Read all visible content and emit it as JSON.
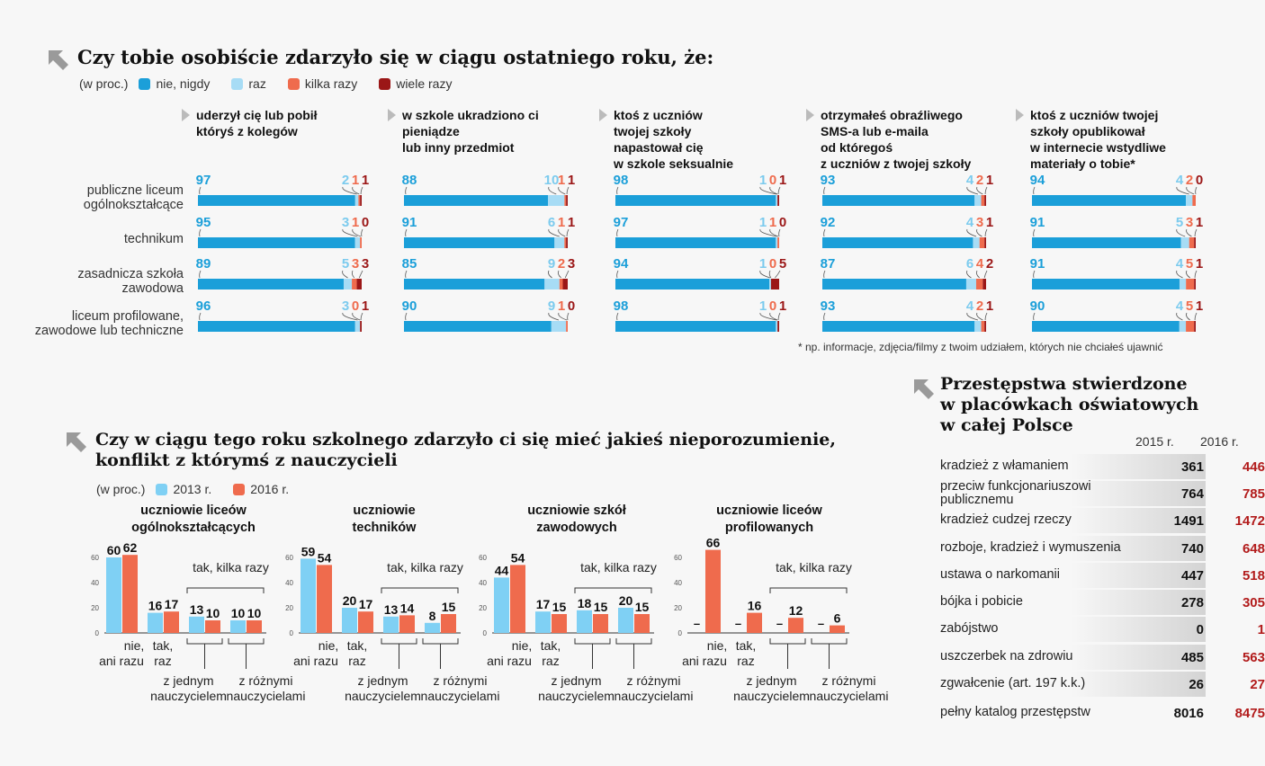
{
  "colors": {
    "never": "#1b9fd9",
    "once": "#a7dcf5",
    "several": "#ef6b4d",
    "many": "#9b1717",
    "y2013": "#7fd0f4",
    "y2016": "#ef6b4d",
    "dark_red": "#b21b1b"
  },
  "section1": {
    "title": "Czy tobie osobiście zdarzyło się w ciągu ostatniego roku, że:",
    "unit": "(w proc.)",
    "legend": [
      "nie, nigdy",
      "raz",
      "kilka razy",
      "wiele razy"
    ],
    "footnote": "* np. informacje, zdjęcia/filmy z twoim udziałem, których nie chciałeś ujawnić",
    "row_labels": [
      [
        "publiczne liceum",
        "ogólnokształcące"
      ],
      [
        "technikum"
      ],
      [
        "zasadnicza szkoła",
        "zawodowa"
      ],
      [
        "liceum profilowane,",
        "zawodowe lub techniczne"
      ]
    ],
    "questions": [
      {
        "title": [
          "uderzył cię lub pobił",
          "któryś z kolegów"
        ],
        "rows": [
          [
            97,
            2,
            1,
            1
          ],
          [
            95,
            3,
            1,
            0
          ],
          [
            89,
            5,
            3,
            3
          ],
          [
            96,
            3,
            0,
            1
          ]
        ]
      },
      {
        "title": [
          "w szkole ukradziono ci",
          "pieniądze",
          "lub inny przedmiot"
        ],
        "rows": [
          [
            88,
            10,
            1,
            1
          ],
          [
            91,
            6,
            1,
            1
          ],
          [
            85,
            9,
            2,
            3
          ],
          [
            90,
            9,
            1,
            0
          ]
        ]
      },
      {
        "title": [
          "ktoś z uczniów",
          "twojej szkoły",
          "napastował cię",
          "w szkole seksualnie"
        ],
        "rows": [
          [
            98,
            1,
            0,
            1
          ],
          [
            97,
            1,
            1,
            0
          ],
          [
            94,
            1,
            0,
            5
          ],
          [
            98,
            1,
            0,
            1
          ]
        ]
      },
      {
        "title": [
          "otrzymałeś obraźliwego",
          "SMS-a lub e-maila",
          "od któregoś",
          "z uczniów z twojej szkoły"
        ],
        "rows": [
          [
            93,
            4,
            2,
            1
          ],
          [
            92,
            4,
            3,
            1
          ],
          [
            87,
            6,
            4,
            2
          ],
          [
            93,
            4,
            2,
            1
          ]
        ]
      },
      {
        "title": [
          "ktoś z uczniów twojej",
          "szkoły opublikował",
          "w internecie wstydliwe",
          "materiały o tobie*"
        ],
        "rows": [
          [
            94,
            4,
            2,
            0
          ],
          [
            91,
            5,
            3,
            1
          ],
          [
            91,
            4,
            5,
            1
          ],
          [
            90,
            4,
            5,
            1
          ]
        ]
      }
    ]
  },
  "section2": {
    "title": [
      "Czy w ciągu tego roku szkolnego zdarzyło ci się mieć jakieś nieporozumienie,",
      "konflikt z którymś z nauczycieli"
    ],
    "unit": "(w proc.)",
    "legend": [
      "2013 r.",
      "2016 r."
    ],
    "bracket_label": "tak, kilka razy",
    "cat_labels": [
      [
        "nie,",
        "ani razu"
      ],
      [
        "tak,",
        "raz"
      ],
      [
        "z jednym",
        "nauczycielem"
      ],
      [
        "z różnymi",
        "nauczycielami"
      ]
    ],
    "y_ticks": [
      "0",
      "20",
      "40",
      "60"
    ],
    "chart_data": [
      {
        "type": "bar",
        "title": [
          "uczniowie liceów",
          "ogólnokształcących"
        ],
        "series": [
          {
            "name": "2013 r.",
            "values": [
              60,
              16,
              13,
              10
            ]
          },
          {
            "name": "2016 r.",
            "values": [
              62,
              17,
              10,
              10
            ]
          }
        ],
        "ylim": [
          0,
          70
        ]
      },
      {
        "type": "bar",
        "title": [
          "uczniowie",
          "techników"
        ],
        "series": [
          {
            "name": "2013 r.",
            "values": [
              59,
              20,
              13,
              8
            ]
          },
          {
            "name": "2016 r.",
            "values": [
              54,
              17,
              14,
              15
            ]
          }
        ],
        "ylim": [
          0,
          70
        ]
      },
      {
        "type": "bar",
        "title": [
          "uczniowie szkół",
          "zawodowych"
        ],
        "series": [
          {
            "name": "2013 r.",
            "values": [
              44,
              17,
              18,
              20
            ]
          },
          {
            "name": "2016 r.",
            "values": [
              54,
              15,
              15,
              15
            ]
          }
        ],
        "ylim": [
          0,
          70
        ]
      },
      {
        "type": "bar",
        "title": [
          "uczniowie liceów",
          "profilowanych"
        ],
        "series": [
          {
            "name": "2013 r.",
            "values": [
              null,
              null,
              null,
              null
            ]
          },
          {
            "name": "2016 r.",
            "values": [
              66,
              16,
              12,
              6
            ]
          }
        ],
        "ylim": [
          0,
          70
        ]
      }
    ],
    "missing_label": "–"
  },
  "section3": {
    "title": [
      "Przestępstwa stwierdzone",
      "w placówkach oświatowych",
      "w całej Polsce"
    ],
    "years": [
      "2015 r.",
      "2016 r."
    ],
    "rows": [
      {
        "label": [
          "kradzież z włamaniem"
        ],
        "v2015": "361",
        "v2016": "446"
      },
      {
        "label": [
          "przeciw funkcjonariuszowi",
          "publicznemu"
        ],
        "v2015": "764",
        "v2016": "785"
      },
      {
        "label": [
          "kradzież cudzej rzeczy"
        ],
        "v2015": "1491",
        "v2016": "1472"
      },
      {
        "label": [
          "rozboje, kradzież i wymuszenia"
        ],
        "v2015": "740",
        "v2016": "648"
      },
      {
        "label": [
          "ustawa o narkomanii"
        ],
        "v2015": "447",
        "v2016": "518"
      },
      {
        "label": [
          "bójka i pobicie"
        ],
        "v2015": "278",
        "v2016": "305"
      },
      {
        "label": [
          "zabójstwo"
        ],
        "v2015": "0",
        "v2016": "1"
      },
      {
        "label": [
          "uszczerbek na zdrowiu"
        ],
        "v2015": "485",
        "v2016": "563"
      },
      {
        "label": [
          "zgwałcenie (art. 197 k.k.)"
        ],
        "v2015": "26",
        "v2016": "27"
      },
      {
        "label": [
          "pełny katalog przestępstw"
        ],
        "v2015": "8016",
        "v2016": "8475"
      }
    ]
  }
}
